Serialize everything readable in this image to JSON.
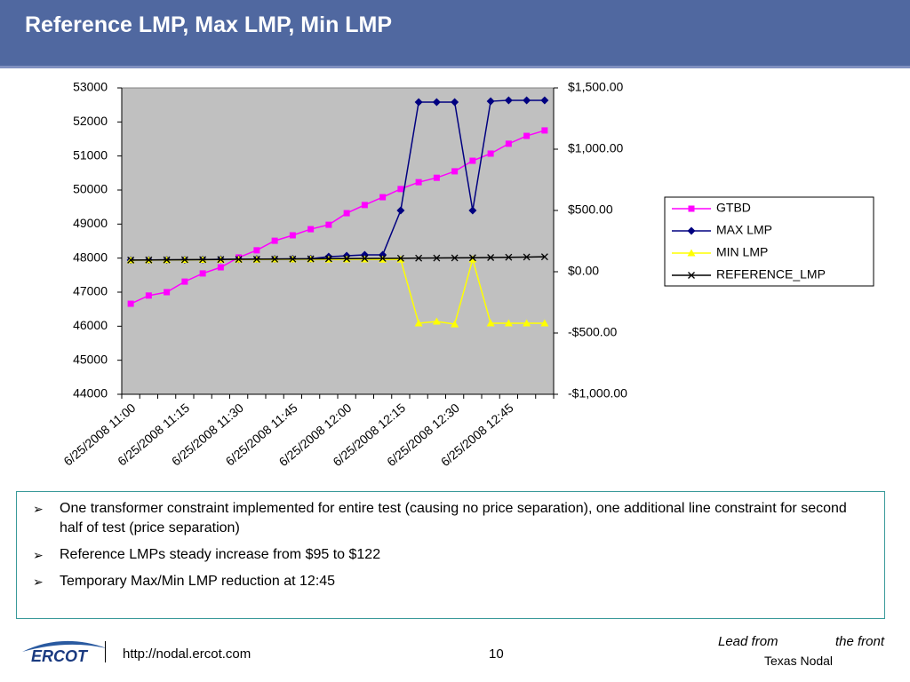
{
  "header": {
    "title": "Reference LMP, Max LMP, Min LMP"
  },
  "chart_data": {
    "type": "line",
    "categories": [
      "6/25/2008 11:00",
      null,
      null,
      "6/25/2008 11:15",
      null,
      null,
      "6/25/2008 11:30",
      null,
      null,
      "6/25/2008 11:45",
      null,
      null,
      "6/25/2008 12:00",
      null,
      null,
      "6/25/2008 12:15",
      null,
      null,
      "6/25/2008 12:30",
      null,
      null,
      "6/25/2008 12:45",
      null,
      null
    ],
    "series": [
      {
        "name": "GTBD",
        "color": "#ff00ff",
        "marker": "square",
        "values": [
          46660,
          46900,
          47000,
          47310,
          47550,
          47730,
          48020,
          48230,
          48510,
          48670,
          48850,
          48980,
          49320,
          49560,
          49790,
          50030,
          50230,
          50360,
          50550,
          50860,
          51070,
          51360,
          51590,
          51750
        ]
      },
      {
        "name": "MAX LMP",
        "color": "#000080",
        "marker": "diamond",
        "axis": "y2",
        "values": [
          95,
          96,
          97,
          98,
          100,
          101,
          102,
          103,
          104,
          105,
          106,
          123,
          130,
          138,
          138,
          500,
          1384,
          1384,
          1384,
          500,
          1391,
          1399,
          1399,
          1399
        ]
      },
      {
        "name": "MIN LMP",
        "color": "#ffff00",
        "marker": "triangle",
        "axis": "y2",
        "values": [
          94,
          95,
          96,
          97,
          98,
          99,
          100,
          100,
          101,
          101,
          102,
          100,
          101,
          101,
          100,
          100,
          -420,
          -406,
          -428,
          101,
          -420,
          -420,
          -420,
          -420
        ]
      },
      {
        "name": "REFERENCE_LMP",
        "color": "#000000",
        "marker": "x",
        "axis": "y2",
        "values": [
          95,
          96,
          97,
          98,
          99,
          100,
          101,
          102,
          103,
          104,
          105,
          106,
          107,
          108,
          109,
          110,
          111,
          112,
          113,
          114,
          116,
          118,
          120,
          122
        ]
      }
    ],
    "ylim": [
      44000,
      53000
    ],
    "yticks": [
      44000,
      45000,
      46000,
      47000,
      48000,
      49000,
      50000,
      51000,
      52000,
      53000
    ],
    "y2lim": [
      -1000,
      1500
    ],
    "y2ticks": [
      {
        "value": -1000,
        "label": "-$1,000.00"
      },
      {
        "value": -500,
        "label": "-$500.00"
      },
      {
        "value": 0,
        "label": "$0.00"
      },
      {
        "value": 500,
        "label": "$500.00"
      },
      {
        "value": 1000,
        "label": "$1,000.00"
      },
      {
        "value": 1500,
        "label": "$1,500.00"
      }
    ],
    "legend": "right",
    "plot_background": "#c0c0c0"
  },
  "bullets": [
    "One transformer constraint implemented for entire test (causing no price separation), one additional line constraint for second half of test (price separation)",
    "Reference LMPs steady increase from $95 to $122",
    "Temporary Max/Min LMP reduction at 12:45"
  ],
  "footer": {
    "logo": "ERCOT",
    "url": "http://nodal.ercot.com",
    "page": "10",
    "tagline_left": "Lead from",
    "tagline_right": "the front",
    "subtitle": "Texas Nodal"
  }
}
